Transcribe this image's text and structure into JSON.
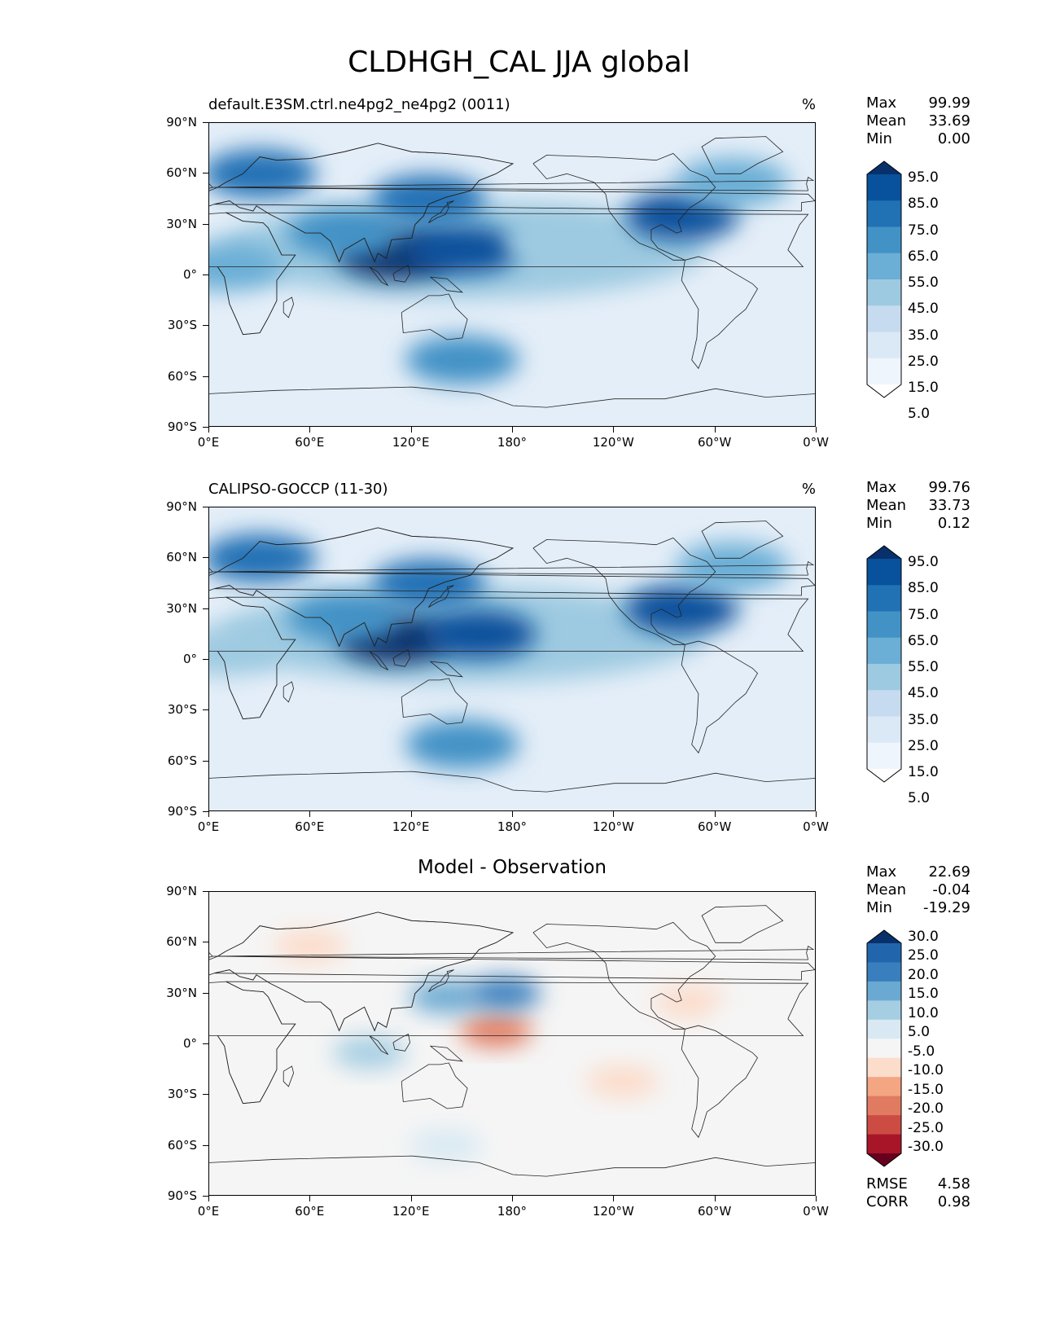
{
  "title": "CLDHGH_CAL JJA global",
  "panels": [
    {
      "id": "test",
      "title_left": "default.E3SM.ctrl.ne4pg2_ne4pg2 (0011)",
      "title_center": "",
      "units": "%",
      "stats": [
        {
          "label": "Max",
          "value": "99.99"
        },
        {
          "label": "Mean",
          "value": "33.69"
        },
        {
          "label": "Min",
          "value": "0.00"
        }
      ],
      "colorbar_labels": [
        "95.0",
        "85.0",
        "75.0",
        "65.0",
        "55.0",
        "45.0",
        "35.0",
        "25.0",
        "15.0",
        "5.0"
      ],
      "colorbar_colors": [
        "#08306b",
        "#08519c",
        "#2171b5",
        "#4292c6",
        "#6baed6",
        "#9ecae1",
        "#c6dbef",
        "#dbe9f6",
        "#eff5fc",
        "#ffffff"
      ]
    },
    {
      "id": "ref",
      "title_left": "CALIPSO-GOCCP (11-30)",
      "title_center": "",
      "units": "%",
      "stats": [
        {
          "label": "Max",
          "value": "99.76"
        },
        {
          "label": "Mean",
          "value": "33.73"
        },
        {
          "label": "Min",
          "value": "0.12"
        }
      ],
      "colorbar_labels": [
        "95.0",
        "85.0",
        "75.0",
        "65.0",
        "55.0",
        "45.0",
        "35.0",
        "25.0",
        "15.0",
        "5.0"
      ],
      "colorbar_colors": [
        "#08306b",
        "#08519c",
        "#2171b5",
        "#4292c6",
        "#6baed6",
        "#9ecae1",
        "#c6dbef",
        "#dbe9f6",
        "#eff5fc",
        "#ffffff"
      ]
    },
    {
      "id": "diff",
      "title_left": "",
      "title_center": "Model - Observation",
      "units": "",
      "stats": [
        {
          "label": "Max",
          "value": "22.69"
        },
        {
          "label": "Mean",
          "value": "-0.04"
        },
        {
          "label": "Min",
          "value": "-19.29"
        }
      ],
      "colorbar_labels": [
        "30.0",
        "25.0",
        "20.0",
        "15.0",
        "10.0",
        "5.0",
        "-5.0",
        "-10.0",
        "-15.0",
        "-20.0",
        "-25.0",
        "-30.0"
      ],
      "colorbar_colors": [
        "#08306b",
        "#2166ac",
        "#3a7fbd",
        "#6aa9d2",
        "#a6cee3",
        "#d8e9f3",
        "#f5f5f5",
        "#fcdcca",
        "#f4a582",
        "#e07b62",
        "#cc4c44",
        "#a81529",
        "#67001f"
      ],
      "metrics": [
        {
          "label": "RMSE",
          "value": "4.58"
        },
        {
          "label": "CORR",
          "value": "0.98"
        }
      ]
    }
  ],
  "axes": {
    "lat_labels": [
      "90°N",
      "60°N",
      "30°N",
      "0°",
      "30°S",
      "60°S",
      "90°S"
    ],
    "lon_labels": [
      "0°E",
      "60°E",
      "120°E",
      "180°",
      "120°W",
      "60°W",
      "0°W"
    ]
  },
  "map_features": {
    "test": [
      {
        "lon": 110,
        "lat": 12,
        "value": 95
      },
      {
        "lon": 150,
        "lat": 15,
        "value": 85
      },
      {
        "lon": 130,
        "lat": 45,
        "value": 75
      },
      {
        "lon": 30,
        "lat": 60,
        "value": 75
      },
      {
        "lon": 280,
        "lat": 35,
        "value": 85
      },
      {
        "lon": 150,
        "lat": -50,
        "value": 65
      },
      {
        "lon": 10,
        "lat": 5,
        "value": 55
      },
      {
        "lon": 80,
        "lat": 25,
        "value": 65
      },
      {
        "lon": 210,
        "lat": 20,
        "value": 45
      },
      {
        "lon": 310,
        "lat": 55,
        "value": 55
      }
    ],
    "ref": [
      {
        "lon": 110,
        "lat": 12,
        "value": 95
      },
      {
        "lon": 160,
        "lat": 15,
        "value": 85
      },
      {
        "lon": 130,
        "lat": 45,
        "value": 75
      },
      {
        "lon": 30,
        "lat": 60,
        "value": 75
      },
      {
        "lon": 280,
        "lat": 30,
        "value": 85
      },
      {
        "lon": 150,
        "lat": -50,
        "value": 65
      },
      {
        "lon": 10,
        "lat": 5,
        "value": 45
      },
      {
        "lon": 80,
        "lat": 25,
        "value": 65
      },
      {
        "lon": 310,
        "lat": 55,
        "value": 55
      }
    ],
    "diff": [
      {
        "lon": 170,
        "lat": 8,
        "value": -20
      },
      {
        "lon": 60,
        "lat": 58,
        "value": -10
      },
      {
        "lon": 140,
        "lat": 28,
        "value": 15
      },
      {
        "lon": 175,
        "lat": 30,
        "value": 20
      },
      {
        "lon": 95,
        "lat": -5,
        "value": 10
      },
      {
        "lon": 285,
        "lat": 25,
        "value": -10
      },
      {
        "lon": 295,
        "lat": -10,
        "value": -5
      },
      {
        "lon": 245,
        "lat": -22,
        "value": -10
      },
      {
        "lon": 320,
        "lat": 15,
        "value": -5
      },
      {
        "lon": 140,
        "lat": -60,
        "value": 5
      }
    ]
  }
}
